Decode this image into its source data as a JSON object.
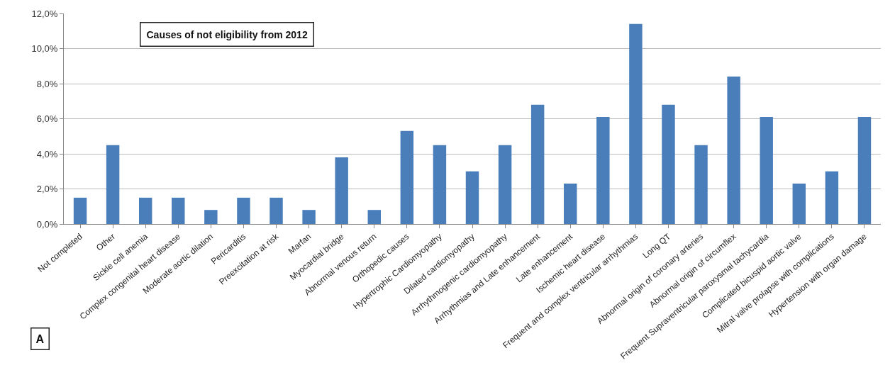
{
  "chart_data": {
    "type": "bar",
    "title": "Causes of not eligibility from 2012",
    "categories": [
      "Not completed",
      "Other",
      "Sickle cell anemia",
      "Complex congenital heart disease",
      "Moderate aortic dilation",
      "Pericarditis",
      "Preexcitation at risk",
      "Marfan",
      "Myocardial bridge",
      "Abnormal venous return",
      "Orthopedic causes",
      "Hypertrophic Cardiomyopathy",
      "Dilated cardiomyopathy",
      "Arrhythmogenic cardiomyopathy",
      "Arrhythmias and Late enhancement",
      "Late enhancement",
      "Ischemic heart disease",
      "Frequent and complex ventricular arrhythmias",
      "Long QT",
      "Abnormal origin of coronary arteries",
      "Abnormal origin of circumflex",
      "Frequent Supraventricular paroxysmal tachycardia",
      "Complicated bicuspid aortic valve",
      "Mitral valve prolapse with complications",
      "Hypertension with organ damage"
    ],
    "values": [
      1.5,
      4.5,
      1.5,
      1.5,
      0.8,
      1.5,
      1.5,
      0.8,
      3.8,
      0.8,
      5.3,
      4.5,
      3.0,
      4.5,
      6.8,
      2.3,
      6.1,
      11.4,
      6.8,
      4.5,
      8.4,
      6.1,
      2.3,
      3.0,
      6.1
    ],
    "color": "#4a7ebb",
    "ylim": [
      0,
      12
    ],
    "yticks": [
      {
        "value": 0,
        "label": "0,0%"
      },
      {
        "value": 2,
        "label": "2,0%"
      },
      {
        "value": 4,
        "label": "4,0%"
      },
      {
        "value": 6,
        "label": "6,0%"
      },
      {
        "value": 8,
        "label": "8,0%"
      },
      {
        "value": 10,
        "label": "10,0%"
      },
      {
        "value": 12,
        "label": "12,0%"
      }
    ],
    "grid": "y",
    "annotations": [
      "A"
    ]
  }
}
